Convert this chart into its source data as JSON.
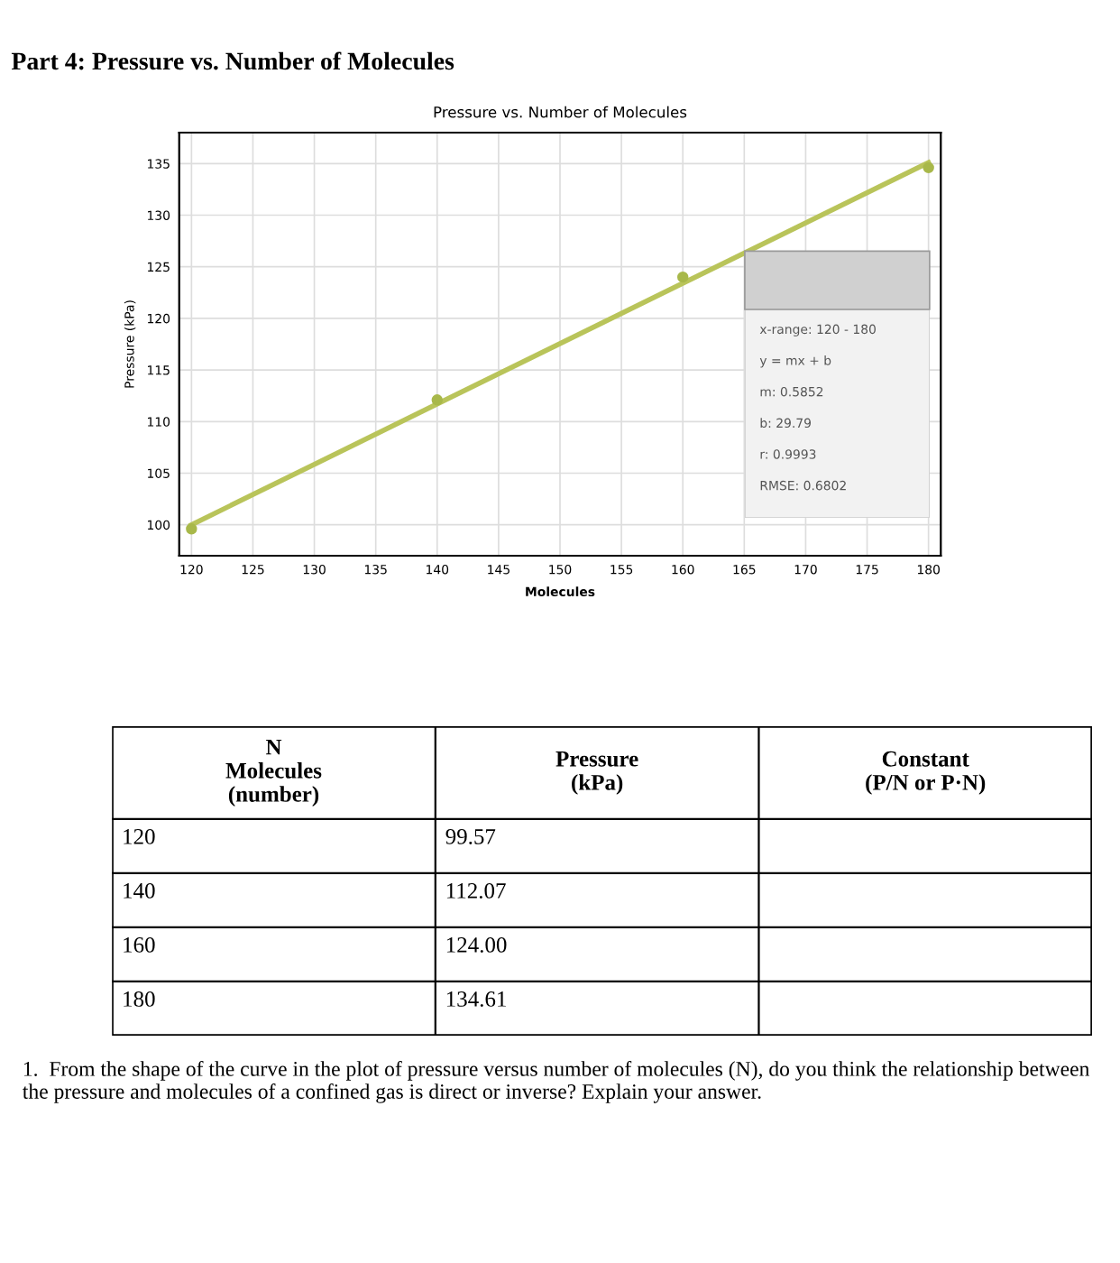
{
  "chart_data": {
    "type": "scatter",
    "title": "Part 4: Pressure vs. Number of Molecules",
    "subtitle": "Pressure vs. Number of Molecules",
    "xlabel": "Molecules",
    "ylabel": "Pressure (kPa)",
    "series": [
      {
        "color": "#a8b84a",
        "x": [
          120,
          140,
          160,
          180
        ],
        "values": [
          99.6,
          112.1,
          124.0,
          134.6
        ]
      },
      {
        "type": "line",
        "color": "#b9c45a",
        "x": [
          120,
          180
        ],
        "values": [
          100.0,
          135.1
        ]
      }
    ],
    "xlim": [
      119,
      181
    ],
    "xticks": [
      120,
      125,
      130,
      135,
      140,
      145,
      150,
      155,
      160,
      165,
      170,
      175,
      180
    ],
    "ylim": [
      97,
      138
    ],
    "yticks": [
      100,
      105,
      110,
      115,
      120,
      125,
      130,
      135
    ],
    "grid": true,
    "annotations": [
      "x-range: 120 - 180",
      "y = mx + b",
      "m: 0.5852",
      "b: 29.79",
      "r: 0.9993",
      "RMSE: 0.6802",
      "N\nMolecules\n(number)",
      "Pressure\n(kPa)",
      "Constant\n(P/N or P·N)",
      "120",
      "99.57",
      "140",
      "112.07",
      "160",
      "124.00",
      "180",
      "134.61",
      "1.  From the shape of the curve in the plot of pressure versus number of molecules (N), do you think the relationship between the pressure and molecules of a confined gas is direct or inverse? Explain your answer."
    ]
  }
}
